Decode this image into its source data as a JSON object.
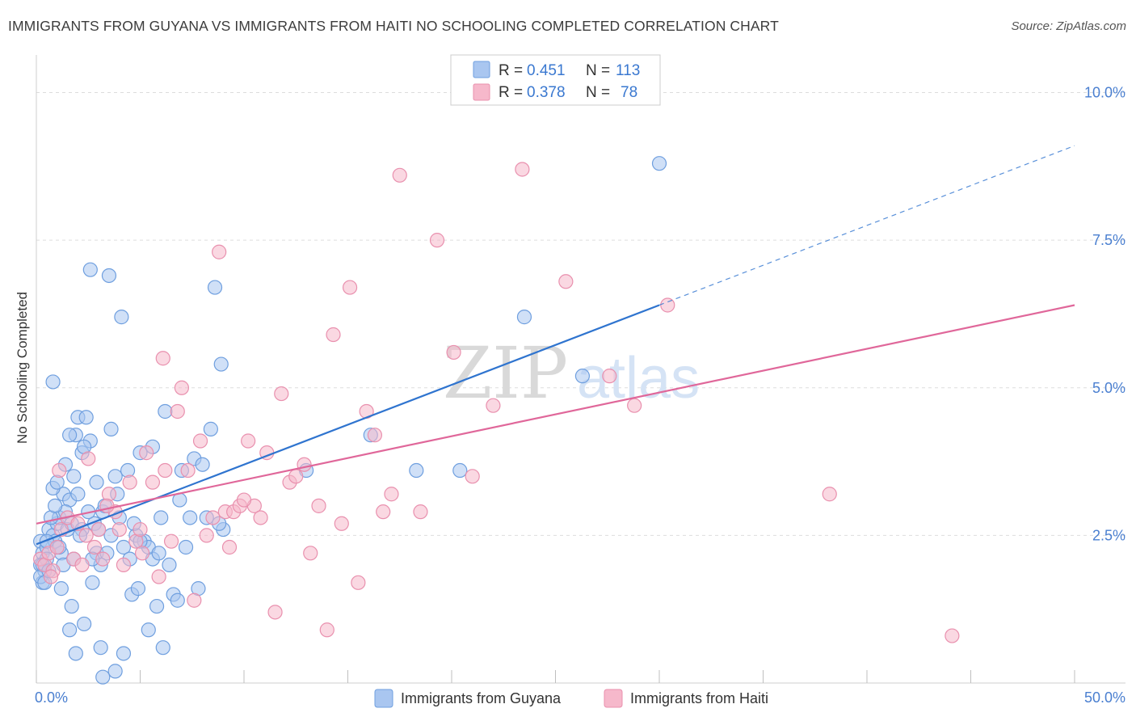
{
  "header": {
    "title": "IMMIGRANTS FROM GUYANA VS IMMIGRANTS FROM HAITI NO SCHOOLING COMPLETED CORRELATION CHART",
    "source": "Source: ZipAtlas.com"
  },
  "watermark": {
    "zip": "ZIP",
    "atlas": "atlas"
  },
  "colors": {
    "guyana_fill": "#a9c6f0",
    "guyana_stroke": "#6f9fdf",
    "guyana_line": "#2f74cf",
    "haiti_fill": "#f6b8cb",
    "haiti_stroke": "#e990ae",
    "haiti_line": "#e0679a",
    "axis_label": "#4a7fd0",
    "grid": "#dddddd"
  },
  "chart_data": {
    "type": "scatter",
    "title": "IMMIGRANTS FROM GUYANA VS IMMIGRANTS FROM HAITI NO SCHOOLING COMPLETED CORRELATION CHART",
    "xlabel": "",
    "ylabel": "No Schooling Completed",
    "xlim": [
      0,
      50
    ],
    "ylim": [
      0,
      10.5
    ],
    "x_tick_labels": {
      "min": "0.0%",
      "max": "50.0%"
    },
    "y_ticks": [
      {
        "value": 2.5,
        "label": "2.5%"
      },
      {
        "value": 5.0,
        "label": "5.0%"
      },
      {
        "value": 7.5,
        "label": "7.5%"
      },
      {
        "value": 10.0,
        "label": "10.0%"
      }
    ],
    "legend": {
      "r_label": "R =",
      "n_label": "N =",
      "entries": [
        {
          "name": "Immigrants from Guyana",
          "r": "0.451",
          "n": "113"
        },
        {
          "name": "Immigrants from Haiti",
          "r": "0.378",
          "n": "78"
        }
      ]
    },
    "series": [
      {
        "name": "Immigrants from Guyana",
        "trend": {
          "x0": 0,
          "y0": 2.35,
          "x1": 30,
          "y1": 6.4,
          "dash_to_x": 50,
          "dash_to_y": 9.1
        },
        "points": [
          [
            0.2,
            2.4
          ],
          [
            0.3,
            2.2
          ],
          [
            0.2,
            2.0
          ],
          [
            0.4,
            1.9
          ],
          [
            0.3,
            1.7
          ],
          [
            0.5,
            2.3
          ],
          [
            0.6,
            2.6
          ],
          [
            0.5,
            2.1
          ],
          [
            0.3,
            2.0
          ],
          [
            0.2,
            1.8
          ],
          [
            0.8,
            2.5
          ],
          [
            1.0,
            2.7
          ],
          [
            0.9,
            2.4
          ],
          [
            1.2,
            2.2
          ],
          [
            1.1,
            2.8
          ],
          [
            0.7,
            2.8
          ],
          [
            1.5,
            2.6
          ],
          [
            1.3,
            3.2
          ],
          [
            0.8,
            3.3
          ],
          [
            1.0,
            3.4
          ],
          [
            1.6,
            3.1
          ],
          [
            1.8,
            3.5
          ],
          [
            2.0,
            3.2
          ],
          [
            1.7,
            2.7
          ],
          [
            2.2,
            2.6
          ],
          [
            1.4,
            3.7
          ],
          [
            1.9,
            4.2
          ],
          [
            2.6,
            4.1
          ],
          [
            2.0,
            4.5
          ],
          [
            2.4,
            4.5
          ],
          [
            1.6,
            4.2
          ],
          [
            2.8,
            2.7
          ],
          [
            3.0,
            2.6
          ],
          [
            3.2,
            2.9
          ],
          [
            2.9,
            2.2
          ],
          [
            3.4,
            2.2
          ],
          [
            3.1,
            2.0
          ],
          [
            2.7,
            2.1
          ],
          [
            3.6,
            2.5
          ],
          [
            4.0,
            2.8
          ],
          [
            3.8,
            3.5
          ],
          [
            4.2,
            2.3
          ],
          [
            4.5,
            2.1
          ],
          [
            4.8,
            2.5
          ],
          [
            5.2,
            2.4
          ],
          [
            5.6,
            2.1
          ],
          [
            5.0,
            3.9
          ],
          [
            5.4,
            2.3
          ],
          [
            6.0,
            2.8
          ],
          [
            6.4,
            2.0
          ],
          [
            6.2,
            4.6
          ],
          [
            6.6,
            1.5
          ],
          [
            6.8,
            1.4
          ],
          [
            7.0,
            3.6
          ],
          [
            7.4,
            2.8
          ],
          [
            7.6,
            3.8
          ],
          [
            7.8,
            1.6
          ],
          [
            8.0,
            3.7
          ],
          [
            8.2,
            2.8
          ],
          [
            8.4,
            4.3
          ],
          [
            8.6,
            6.7
          ],
          [
            8.9,
            5.4
          ],
          [
            9.0,
            2.6
          ],
          [
            2.6,
            7.0
          ],
          [
            3.5,
            6.9
          ],
          [
            4.1,
            6.2
          ],
          [
            0.8,
            5.1
          ],
          [
            3.6,
            4.3
          ],
          [
            4.4,
            3.6
          ],
          [
            5.6,
            4.0
          ],
          [
            1.2,
            1.6
          ],
          [
            1.7,
            1.3
          ],
          [
            2.3,
            1.0
          ],
          [
            1.6,
            0.9
          ],
          [
            1.9,
            0.5
          ],
          [
            3.1,
            0.6
          ],
          [
            3.8,
            0.2
          ],
          [
            4.2,
            0.5
          ],
          [
            5.4,
            0.9
          ],
          [
            6.1,
            0.6
          ],
          [
            3.2,
            0.1
          ],
          [
            2.7,
            1.7
          ],
          [
            4.6,
            1.5
          ],
          [
            4.9,
            1.6
          ],
          [
            5.8,
            1.3
          ],
          [
            0.4,
            1.7
          ],
          [
            0.6,
            1.9
          ],
          [
            1.1,
            2.3
          ],
          [
            1.3,
            2.0
          ],
          [
            2.1,
            2.5
          ],
          [
            2.5,
            2.9
          ],
          [
            3.3,
            3.0
          ],
          [
            3.9,
            3.2
          ],
          [
            4.7,
            2.7
          ],
          [
            5.0,
            2.4
          ],
          [
            5.9,
            2.2
          ],
          [
            6.9,
            3.1
          ],
          [
            7.2,
            2.3
          ],
          [
            8.8,
            2.7
          ],
          [
            2.2,
            3.9
          ],
          [
            2.9,
            3.4
          ],
          [
            1.4,
            2.9
          ],
          [
            0.9,
            3.0
          ],
          [
            1.8,
            2.1
          ],
          [
            0.5,
            2.4
          ],
          [
            16.1,
            4.2
          ],
          [
            18.3,
            3.6
          ],
          [
            20.4,
            3.6
          ],
          [
            23.5,
            6.2
          ],
          [
            26.3,
            5.2
          ],
          [
            30.0,
            8.8
          ],
          [
            13.0,
            3.6
          ],
          [
            2.3,
            4.0
          ]
        ]
      },
      {
        "name": "Immigrants from Haiti",
        "trend": {
          "x0": 0,
          "y0": 2.7,
          "x1": 50,
          "y1": 6.4
        },
        "points": [
          [
            0.2,
            2.1
          ],
          [
            0.4,
            2.0
          ],
          [
            0.6,
            2.2
          ],
          [
            0.8,
            1.9
          ],
          [
            1.0,
            2.3
          ],
          [
            1.2,
            2.6
          ],
          [
            1.5,
            2.8
          ],
          [
            1.8,
            2.1
          ],
          [
            2.0,
            2.7
          ],
          [
            2.2,
            2.0
          ],
          [
            2.5,
            3.8
          ],
          [
            2.8,
            2.3
          ],
          [
            3.0,
            2.6
          ],
          [
            3.2,
            2.1
          ],
          [
            3.5,
            3.2
          ],
          [
            3.8,
            2.9
          ],
          [
            4.0,
            2.6
          ],
          [
            4.2,
            2.0
          ],
          [
            4.5,
            3.4
          ],
          [
            4.8,
            2.4
          ],
          [
            5.0,
            2.6
          ],
          [
            5.3,
            3.9
          ],
          [
            5.6,
            3.4
          ],
          [
            5.9,
            1.8
          ],
          [
            6.2,
            3.6
          ],
          [
            6.5,
            2.4
          ],
          [
            6.8,
            4.6
          ],
          [
            7.0,
            5.0
          ],
          [
            7.3,
            3.6
          ],
          [
            7.6,
            1.4
          ],
          [
            7.9,
            4.1
          ],
          [
            8.2,
            2.5
          ],
          [
            8.5,
            2.8
          ],
          [
            8.8,
            7.3
          ],
          [
            9.1,
            2.9
          ],
          [
            9.5,
            2.9
          ],
          [
            9.8,
            3.0
          ],
          [
            10.2,
            4.1
          ],
          [
            10.5,
            3.0
          ],
          [
            10.8,
            2.8
          ],
          [
            11.1,
            3.9
          ],
          [
            11.5,
            1.2
          ],
          [
            11.8,
            4.9
          ],
          [
            12.2,
            3.4
          ],
          [
            12.5,
            3.5
          ],
          [
            12.9,
            3.7
          ],
          [
            13.2,
            2.2
          ],
          [
            13.6,
            3.0
          ],
          [
            14.0,
            0.9
          ],
          [
            14.3,
            5.9
          ],
          [
            14.7,
            2.7
          ],
          [
            15.1,
            6.7
          ],
          [
            15.5,
            1.7
          ],
          [
            15.9,
            4.6
          ],
          [
            16.3,
            4.2
          ],
          [
            16.7,
            2.9
          ],
          [
            17.1,
            3.2
          ],
          [
            17.5,
            8.6
          ],
          [
            18.5,
            2.9
          ],
          [
            19.3,
            7.5
          ],
          [
            20.1,
            5.6
          ],
          [
            21.0,
            3.5
          ],
          [
            22.0,
            4.7
          ],
          [
            23.4,
            8.7
          ],
          [
            25.5,
            6.8
          ],
          [
            27.6,
            5.2
          ],
          [
            28.8,
            4.7
          ],
          [
            30.4,
            6.4
          ],
          [
            38.2,
            3.2
          ],
          [
            44.1,
            0.8
          ],
          [
            1.1,
            3.6
          ],
          [
            0.7,
            1.8
          ],
          [
            2.4,
            2.5
          ],
          [
            3.4,
            3.0
          ],
          [
            5.1,
            2.2
          ],
          [
            6.1,
            5.5
          ],
          [
            9.3,
            2.3
          ],
          [
            10.0,
            3.1
          ]
        ]
      }
    ]
  }
}
